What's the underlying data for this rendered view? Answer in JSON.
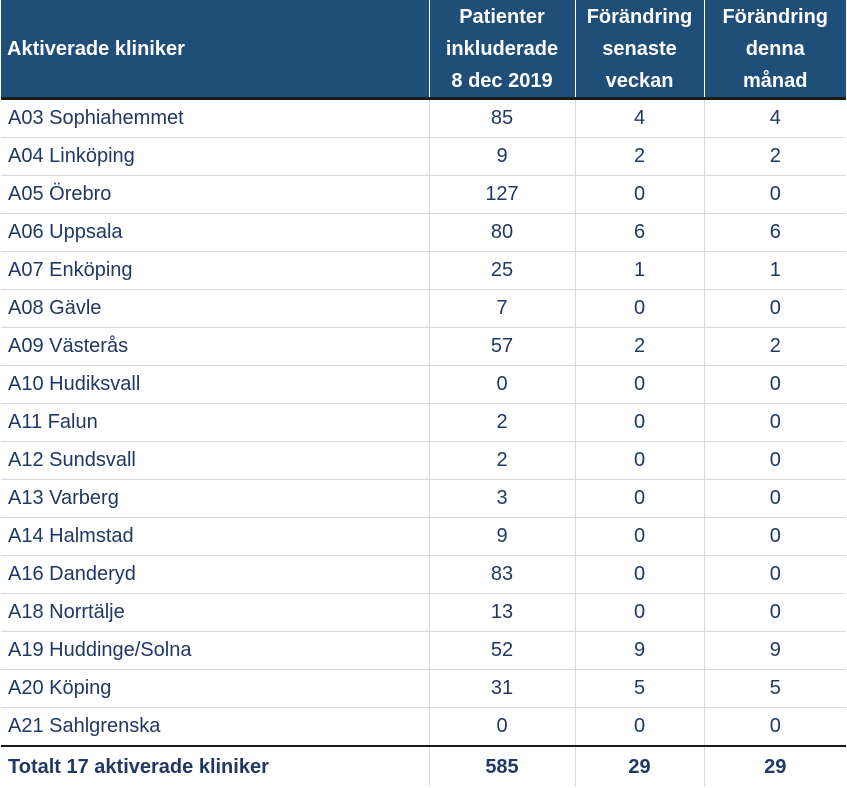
{
  "table": {
    "headers": {
      "clinic": "Aktiverade kliniker",
      "included": [
        "Patienter",
        "inkluderade",
        "8 dec 2019"
      ],
      "week": [
        "Förändring",
        "senaste",
        "veckan"
      ],
      "month": [
        "Förändring",
        "denna",
        "månad"
      ]
    },
    "rows": [
      {
        "name": "A03 Sophiahemmet",
        "included": "85",
        "week": "4",
        "month": "4"
      },
      {
        "name": "A04 Linköping",
        "included": "9",
        "week": "2",
        "month": "2"
      },
      {
        "name": "A05 Örebro",
        "included": "127",
        "week": "0",
        "month": "0"
      },
      {
        "name": "A06 Uppsala",
        "included": "80",
        "week": "6",
        "month": "6"
      },
      {
        "name": "A07 Enköping",
        "included": "25",
        "week": "1",
        "month": "1"
      },
      {
        "name": "A08 Gävle",
        "included": "7",
        "week": "0",
        "month": "0"
      },
      {
        "name": "A09 Västerås",
        "included": "57",
        "week": "2",
        "month": "2"
      },
      {
        "name": "A10 Hudiksvall",
        "included": "0",
        "week": "0",
        "month": "0"
      },
      {
        "name": "A11 Falun",
        "included": "2",
        "week": "0",
        "month": "0"
      },
      {
        "name": "A12 Sundsvall",
        "included": "2",
        "week": "0",
        "month": "0"
      },
      {
        "name": "A13 Varberg",
        "included": "3",
        "week": "0",
        "month": "0"
      },
      {
        "name": "A14 Halmstad",
        "included": "9",
        "week": "0",
        "month": "0"
      },
      {
        "name": "A16 Danderyd",
        "included": "83",
        "week": "0",
        "month": "0"
      },
      {
        "name": "A18 Norrtälje",
        "included": "13",
        "week": "0",
        "month": "0"
      },
      {
        "name": "A19 Huddinge/Solna",
        "included": "52",
        "week": "9",
        "month": "9"
      },
      {
        "name": "A20 Köping",
        "included": "31",
        "week": "5",
        "month": "5"
      },
      {
        "name": "A21 Sahlgrenska",
        "included": "0",
        "week": "0",
        "month": "0"
      }
    ],
    "total": {
      "name": "Totalt 17 aktiverade kliniker",
      "included": "585",
      "week": "29",
      "month": "29"
    }
  },
  "colors": {
    "header_bg": "#1f4e79",
    "header_text": "#ffffff",
    "body_text": "#1f3864",
    "grid": "#d9d9d9"
  }
}
